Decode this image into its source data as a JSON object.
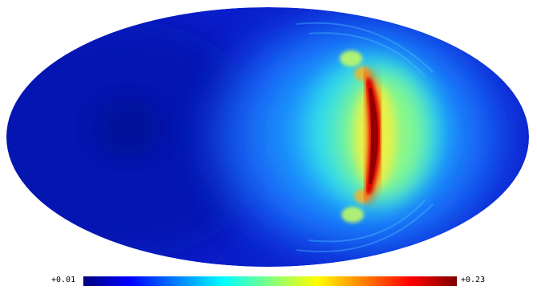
{
  "map": {
    "projection": "mollweide",
    "colormap": "jet",
    "background_value_color": "#0a1fcc",
    "feature_peak_color": "#a00000"
  },
  "colorbar": {
    "min_label": "+0.01",
    "max_label": "+0.23",
    "stops": [
      "#00007f",
      "#0000ff",
      "#0080ff",
      "#00ffff",
      "#80ff80",
      "#ffff00",
      "#ff8000",
      "#ff0000",
      "#7f0000"
    ]
  }
}
